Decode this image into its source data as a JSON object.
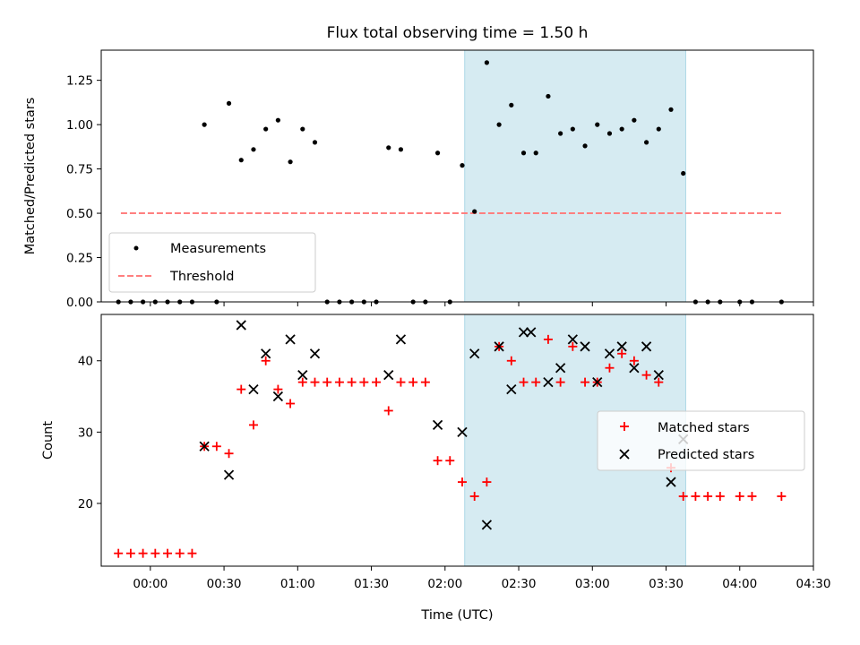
{
  "chart_data": [
    {
      "type": "scatter",
      "title": "Flux total observing time = 1.50 h",
      "xlabel": "",
      "ylabel": "Matched/Predicted stars",
      "ylim": [
        0,
        1.42
      ],
      "yticks": [
        "0.00",
        "0.25",
        "0.50",
        "0.75",
        "1.00",
        "1.25"
      ],
      "grid": false,
      "legend_position": "lower-left",
      "highlight_span": {
        "start": "02:08",
        "end": "03:38",
        "color": "#add8e6"
      },
      "series": [
        {
          "name": "Measurements",
          "marker": "dot",
          "color": "#000000",
          "points": [
            [
              "-00:13",
              0
            ],
            [
              "-00:08",
              0
            ],
            [
              "-00:03",
              0
            ],
            [
              "00:02",
              0
            ],
            [
              "00:07",
              0
            ],
            [
              "00:12",
              0
            ],
            [
              "00:17",
              0
            ],
            [
              "00:22",
              1.0
            ],
            [
              "00:27",
              0
            ],
            [
              "00:32",
              1.12
            ],
            [
              "00:37",
              0.8
            ],
            [
              "00:42",
              0.86
            ],
            [
              "00:47",
              0.975
            ],
            [
              "00:52",
              1.025
            ],
            [
              "00:57",
              0.79
            ],
            [
              "01:02",
              0.975
            ],
            [
              "01:07",
              0.9
            ],
            [
              "01:12",
              0
            ],
            [
              "01:17",
              0
            ],
            [
              "01:22",
              0
            ],
            [
              "01:27",
              0
            ],
            [
              "01:32",
              0
            ],
            [
              "01:37",
              0.87
            ],
            [
              "01:42",
              0.86
            ],
            [
              "01:47",
              0
            ],
            [
              "01:52",
              0
            ],
            [
              "01:57",
              0.84
            ],
            [
              "02:02",
              0
            ],
            [
              "02:07",
              0.77
            ],
            [
              "02:12",
              0.51
            ],
            [
              "02:17",
              1.35
            ],
            [
              "02:22",
              1.0
            ],
            [
              "02:27",
              1.11
            ],
            [
              "02:32",
              0.84
            ],
            [
              "02:37",
              0.84
            ],
            [
              "02:42",
              1.16
            ],
            [
              "02:47",
              0.95
            ],
            [
              "02:52",
              0.975
            ],
            [
              "02:57",
              0.88
            ],
            [
              "03:02",
              1.0
            ],
            [
              "03:07",
              0.95
            ],
            [
              "03:12",
              0.975
            ],
            [
              "03:17",
              1.025
            ],
            [
              "03:22",
              0.9
            ],
            [
              "03:27",
              0.975
            ],
            [
              "03:32",
              1.085
            ],
            [
              "03:37",
              0.725
            ],
            [
              "03:42",
              0
            ],
            [
              "03:47",
              0
            ],
            [
              "03:52",
              0
            ],
            [
              "04:00",
              0
            ],
            [
              "04:05",
              0
            ],
            [
              "04:17",
              0
            ]
          ]
        },
        {
          "name": "Threshold",
          "line_style": "dashed",
          "color": "#ff7f7f",
          "points": [
            [
              "-00:12",
              0.5
            ],
            [
              "04:17",
              0.5
            ]
          ]
        }
      ]
    },
    {
      "type": "scatter",
      "title": "",
      "xlabel": "Time (UTC)",
      "ylabel": "Count",
      "ylim": [
        11.2,
        46.5
      ],
      "yticks": [
        "20",
        "30",
        "40"
      ],
      "xticks": [
        "00:00",
        "00:30",
        "01:00",
        "01:30",
        "02:00",
        "02:30",
        "03:00",
        "03:30",
        "04:00",
        "04:30"
      ],
      "grid": false,
      "legend_position": "center-right",
      "highlight_span": {
        "start": "02:08",
        "end": "03:38",
        "color": "#add8e6"
      },
      "series": [
        {
          "name": "Matched stars",
          "marker": "plus",
          "color": "#ff0000",
          "points": [
            [
              "-00:13",
              13
            ],
            [
              "-00:08",
              13
            ],
            [
              "-00:03",
              13
            ],
            [
              "00:02",
              13
            ],
            [
              "00:07",
              13
            ],
            [
              "00:12",
              13
            ],
            [
              "00:17",
              13
            ],
            [
              "00:22",
              28
            ],
            [
              "00:27",
              28
            ],
            [
              "00:32",
              27
            ],
            [
              "00:37",
              36
            ],
            [
              "00:42",
              31
            ],
            [
              "00:47",
              40
            ],
            [
              "00:52",
              36
            ],
            [
              "00:57",
              34
            ],
            [
              "01:02",
              37
            ],
            [
              "01:07",
              37
            ],
            [
              "01:12",
              37
            ],
            [
              "01:17",
              37
            ],
            [
              "01:22",
              37
            ],
            [
              "01:27",
              37
            ],
            [
              "01:32",
              37
            ],
            [
              "01:37",
              33
            ],
            [
              "01:42",
              37
            ],
            [
              "01:47",
              37
            ],
            [
              "01:52",
              37
            ],
            [
              "01:57",
              26
            ],
            [
              "02:02",
              26
            ],
            [
              "02:07",
              23
            ],
            [
              "02:12",
              21
            ],
            [
              "02:17",
              23
            ],
            [
              "02:22",
              42
            ],
            [
              "02:27",
              40
            ],
            [
              "02:32",
              37
            ],
            [
              "02:37",
              37
            ],
            [
              "02:42",
              43
            ],
            [
              "02:47",
              37
            ],
            [
              "02:52",
              42
            ],
            [
              "02:57",
              37
            ],
            [
              "03:02",
              37
            ],
            [
              "03:07",
              39
            ],
            [
              "03:12",
              41
            ],
            [
              "03:17",
              40
            ],
            [
              "03:22",
              38
            ],
            [
              "03:27",
              37
            ],
            [
              "03:32",
              25
            ],
            [
              "03:37",
              21
            ],
            [
              "03:42",
              21
            ],
            [
              "03:47",
              21
            ],
            [
              "03:52",
              21
            ],
            [
              "04:00",
              21
            ],
            [
              "04:05",
              21
            ],
            [
              "04:17",
              21
            ]
          ]
        },
        {
          "name": "Predicted stars",
          "marker": "x",
          "color": "#000000",
          "points": [
            [
              "00:22",
              28
            ],
            [
              "00:32",
              24
            ],
            [
              "00:37",
              45
            ],
            [
              "00:42",
              36
            ],
            [
              "00:47",
              41
            ],
            [
              "00:52",
              35
            ],
            [
              "00:57",
              43
            ],
            [
              "01:02",
              38
            ],
            [
              "01:07",
              41
            ],
            [
              "01:37",
              38
            ],
            [
              "01:42",
              43
            ],
            [
              "01:57",
              31
            ],
            [
              "02:07",
              30
            ],
            [
              "02:12",
              41
            ],
            [
              "02:17",
              17
            ],
            [
              "02:22",
              42
            ],
            [
              "02:27",
              36
            ],
            [
              "02:32",
              44
            ],
            [
              "02:35",
              44
            ],
            [
              "02:42",
              37
            ],
            [
              "02:47",
              39
            ],
            [
              "02:52",
              43
            ],
            [
              "02:57",
              42
            ],
            [
              "03:02",
              37
            ],
            [
              "03:07",
              41
            ],
            [
              "03:12",
              42
            ],
            [
              "03:17",
              39
            ],
            [
              "03:22",
              42
            ],
            [
              "03:27",
              38
            ],
            [
              "03:32",
              23
            ],
            [
              "03:37",
              29
            ]
          ]
        }
      ]
    }
  ]
}
